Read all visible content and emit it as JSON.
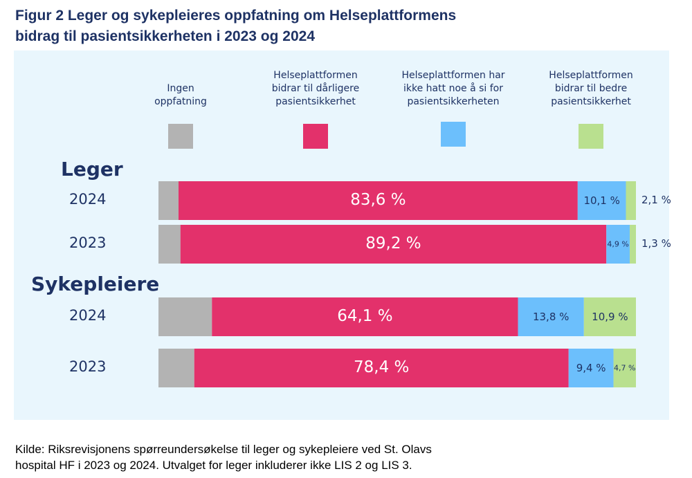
{
  "title": [
    "Figur 2 Leger og sykepleieres oppfatning om Helseplattformens",
    "bidrag til pasientsikkerheten i 2023 og 2024"
  ],
  "chart_data": {
    "type": "bar",
    "orientation": "horizontal",
    "stacked": true,
    "legend_placement": "top",
    "categories_order": [
      "Ingen oppfatning",
      "Helseplattformen bidrar til dårligere pasientsikkerhet",
      "Helseplattformen har ikke hatt noe å si for pasientsikkerheten",
      "Helseplattformen bidrar til bedre pasientsikkerhet"
    ],
    "series": [
      {
        "name": "Ingen oppfatning",
        "legend_lines": [
          "Ingen",
          "oppfatning"
        ],
        "color": "#b3b3b3"
      },
      {
        "name": "Helseplattformen bidrar til dårligere pasientsikkerhet",
        "legend_lines": [
          "Helseplattformen",
          "bidrar til dårligere",
          "pasientsikkerhet"
        ],
        "color": "#e3316b"
      },
      {
        "name": "Helseplattformen har ikke hatt noe å si for pasientsikkerheten",
        "legend_lines": [
          "Helseplattformen har",
          "ikke hatt noe å si for",
          "pasientsikkerheten"
        ],
        "color": "#6cbffc"
      },
      {
        "name": "Helseplattformen bidrar til bedre pasientsikkerhet",
        "legend_lines": [
          "Helseplattformen",
          "bidrar til bedre",
          "pasientsikkerhet"
        ],
        "color": "#b9e08f"
      }
    ],
    "groups": [
      {
        "label": "Leger",
        "rows": [
          {
            "year": "2024",
            "values": [
              4.2,
              83.6,
              10.1,
              2.1
            ],
            "labels": [
              null,
              "83,6 %",
              "10,1 %",
              "2,1 %"
            ]
          },
          {
            "year": "2023",
            "values": [
              4.6,
              89.2,
              4.9,
              1.3
            ],
            "labels": [
              null,
              "89,2 %",
              "4,9 %",
              "1,3 %"
            ]
          }
        ]
      },
      {
        "label": "Sykepleiere",
        "rows": [
          {
            "year": "2024",
            "values": [
              11.2,
              64.1,
              13.8,
              10.9
            ],
            "labels": [
              null,
              "64,1 %",
              "13,8 %",
              "10,9 %"
            ]
          },
          {
            "year": "2023",
            "values": [
              7.5,
              78.4,
              9.4,
              4.7
            ],
            "labels": [
              null,
              "78,4 %",
              "9,4 %",
              "4,7 %"
            ]
          }
        ]
      }
    ],
    "xlim": [
      0,
      100
    ],
    "grid": false
  },
  "footer": [
    "Kilde: Riksrevisjonens spørreundersøkelse til leger og sykepleiere ved St. Olavs",
    "hospital HF i 2023 og 2024. Utvalget for leger inkluderer ikke LIS 2 og LIS 3."
  ]
}
